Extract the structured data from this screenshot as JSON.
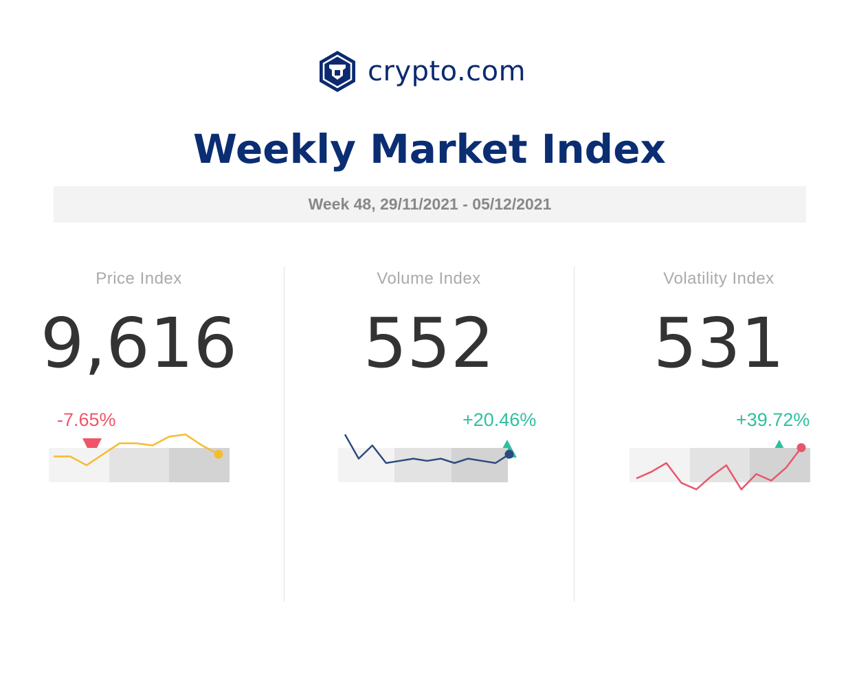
{
  "brand": {
    "name": "crypto.com",
    "color": "#0b2a6f"
  },
  "header": {
    "title": "Weekly Market Index",
    "subtitle": "Week 48, 29/11/2021 - 05/12/2021"
  },
  "indices": [
    {
      "label": "Price Index",
      "value": "9,616",
      "change": "-7.65%",
      "direction": "down",
      "change_color": "#ef5567",
      "gauge_level": 0.24,
      "sparkline_color": "#f5bd2e",
      "sparkline": [
        58,
        58,
        54,
        59,
        64,
        64,
        63,
        67,
        68,
        63,
        59
      ]
    },
    {
      "label": "Volume Index",
      "value": "552",
      "change": "+20.46%",
      "direction": "up",
      "change_color": "#2ebf9f",
      "gauge_level": 0.94,
      "sparkline_color": "#2d4a7f",
      "sparkline": [
        68,
        57,
        63,
        55,
        56,
        57,
        56,
        57,
        55,
        57,
        56,
        55,
        59
      ]
    },
    {
      "label": "Volatility Index",
      "value": "531",
      "change": "+39.72%",
      "direction": "up",
      "change_color": "#2ebf9f",
      "gauge_level": 0.83,
      "sparkline_color": "#e8566a",
      "sparkline": [
        48,
        51,
        55,
        46,
        43,
        49,
        54,
        43,
        50,
        47,
        53,
        62
      ]
    }
  ]
}
